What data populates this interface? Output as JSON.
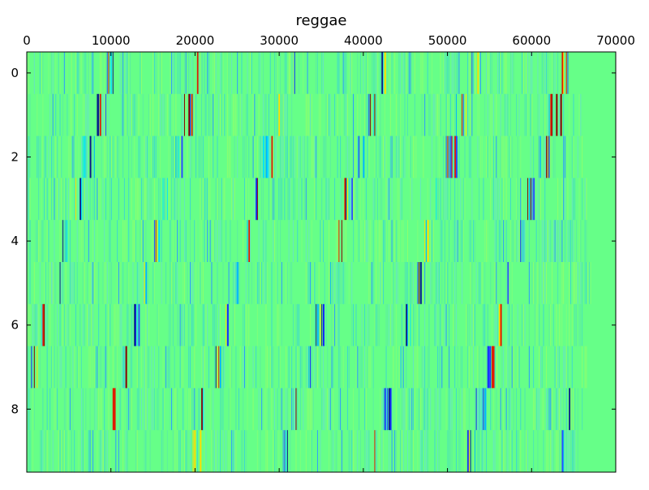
{
  "chart_data": {
    "type": "heatmap",
    "title": "reggae",
    "xlabel": "",
    "ylabel": "",
    "x_ticks": [
      0,
      10000,
      20000,
      30000,
      40000,
      50000,
      60000,
      70000
    ],
    "x_tick_labels": [
      "0",
      "10000",
      "20000",
      "30000",
      "40000",
      "50000",
      "60000",
      "70000"
    ],
    "y_ticks": [
      0,
      2,
      4,
      6,
      8
    ],
    "y_tick_labels": [
      "0",
      "2",
      "4",
      "6",
      "8"
    ],
    "xlim": [
      0,
      70000
    ],
    "ylim": [
      9.5,
      -0.5
    ],
    "x_axis_position": "top",
    "y_axis_inverted": true,
    "grid": false,
    "legend": "none",
    "rows": 10,
    "colormap": "jet",
    "background_value_color": "#66ff88",
    "rows_data": [
      {
        "row": 0,
        "signal_end": 65000,
        "loud_segments": [
          [
            9200,
            10300
          ],
          [
            20200,
            20900
          ],
          [
            31000,
            31800
          ],
          [
            41800,
            42600
          ],
          [
            52800,
            53700
          ],
          [
            63500,
            64700
          ]
        ]
      },
      {
        "row": 1,
        "signal_end": 66000,
        "loud_segments": [
          [
            8000,
            9500
          ],
          [
            18700,
            19700
          ],
          [
            29800,
            30400
          ],
          [
            40500,
            41700
          ],
          [
            51000,
            52200
          ],
          [
            62000,
            63500
          ]
        ]
      },
      {
        "row": 2,
        "signal_end": 66000,
        "loud_segments": [
          [
            6500,
            8200
          ],
          [
            17300,
            18500
          ],
          [
            28000,
            29300
          ],
          [
            39000,
            40000
          ],
          [
            49700,
            51200
          ],
          [
            61000,
            62300
          ]
        ]
      },
      {
        "row": 3,
        "signal_end": 66500,
        "loud_segments": [
          [
            5300,
            6500
          ],
          [
            16000,
            16900
          ],
          [
            26800,
            27500
          ],
          [
            37700,
            38600
          ],
          [
            48500,
            49000
          ],
          [
            59500,
            60500
          ]
        ]
      },
      {
        "row": 4,
        "signal_end": 66500,
        "loud_segments": [
          [
            4100,
            4800
          ],
          [
            15100,
            15700
          ],
          [
            25800,
            26500
          ],
          [
            36600,
            37500
          ],
          [
            47200,
            48000
          ],
          [
            58200,
            59000
          ]
        ]
      },
      {
        "row": 5,
        "signal_end": 67000,
        "loud_segments": [
          [
            2800,
            4200
          ],
          [
            13700,
            14400
          ],
          [
            24700,
            25500
          ],
          [
            35300,
            36400
          ],
          [
            46200,
            46900
          ],
          [
            57000,
            57600
          ]
        ]
      },
      {
        "row": 6,
        "signal_end": 66800,
        "loud_segments": [
          [
            1700,
            2300
          ],
          [
            12600,
            13400
          ],
          [
            23500,
            24000
          ],
          [
            34200,
            35200
          ],
          [
            45000,
            45600
          ],
          [
            55800,
            56300
          ]
        ]
      },
      {
        "row": 7,
        "signal_end": 66500,
        "loud_segments": [
          [
            500,
            1200
          ],
          [
            11300,
            11800
          ],
          [
            22300,
            23300
          ],
          [
            33000,
            33800
          ],
          [
            43900,
            44500
          ],
          [
            54600,
            55800
          ]
        ]
      },
      {
        "row": 8,
        "signal_end": 66000,
        "loud_segments": [
          [
            9800,
            10400
          ],
          [
            20600,
            21200
          ],
          [
            31600,
            32200
          ],
          [
            42400,
            43300
          ],
          [
            53300,
            54400
          ],
          [
            64300,
            64800
          ]
        ]
      },
      {
        "row": 9,
        "signal_end": 65500,
        "loud_segments": [
          [
            8800,
            9300
          ],
          [
            19500,
            20600
          ],
          [
            30500,
            31200
          ],
          [
            41300,
            41800
          ],
          [
            52200,
            53300
          ],
          [
            63000,
            63800
          ]
        ]
      }
    ]
  }
}
